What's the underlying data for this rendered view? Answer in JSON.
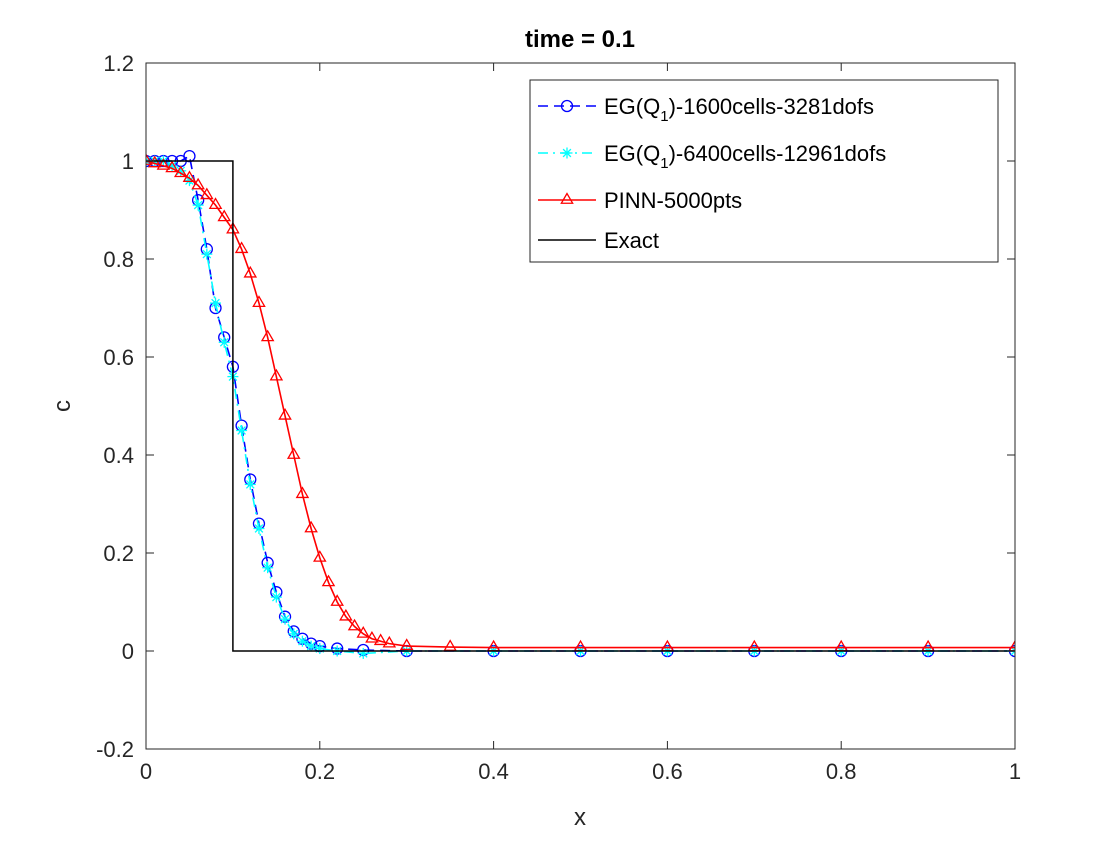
{
  "chart_data": {
    "type": "line",
    "title": "time = 0.1",
    "xlabel": "x",
    "ylabel": "c",
    "xlim": [
      0,
      1
    ],
    "ylim": [
      -0.2,
      1.2
    ],
    "xticks": [
      0,
      0.2,
      0.4,
      0.6,
      0.8,
      1
    ],
    "xtick_labels": [
      "0",
      "0.2",
      "0.4",
      "0.6",
      "0.8",
      "1"
    ],
    "yticks": [
      -0.2,
      0,
      0.2,
      0.4,
      0.6,
      0.8,
      1,
      1.2
    ],
    "ytick_labels": [
      "-0.2",
      "0",
      "0.2",
      "0.4",
      "0.6",
      "0.8",
      "1",
      "1.2"
    ],
    "grid": false,
    "legend_position": "top-right",
    "series": [
      {
        "name": "EG(Q1)-1600cells-3281dofs",
        "legend_prefix": "EG(Q",
        "legend_sub": "1",
        "legend_suffix": ")-1600cells-3281dofs",
        "color": "#0000ff",
        "line_style": "dashed",
        "marker": "circle",
        "x": [
          0,
          0.01,
          0.02,
          0.03,
          0.04,
          0.05,
          0.06,
          0.07,
          0.08,
          0.09,
          0.1,
          0.11,
          0.12,
          0.13,
          0.14,
          0.15,
          0.16,
          0.17,
          0.18,
          0.19,
          0.2,
          0.22,
          0.25,
          0.3,
          0.4,
          0.5,
          0.6,
          0.7,
          0.8,
          0.9,
          1.0
        ],
        "y": [
          1.0,
          1.0,
          1.0,
          1.0,
          1.0,
          1.01,
          0.92,
          0.82,
          0.7,
          0.64,
          0.58,
          0.46,
          0.35,
          0.26,
          0.18,
          0.12,
          0.07,
          0.04,
          0.025,
          0.015,
          0.01,
          0.005,
          0.002,
          0.0,
          0.0,
          0.0,
          0.0,
          0.0,
          0.0,
          0.0,
          0.0
        ]
      },
      {
        "name": "EG(Q1)-6400cells-12961dofs",
        "legend_prefix": "EG(Q",
        "legend_sub": "1",
        "legend_suffix": ")-6400cells-12961dofs",
        "color": "#00ffff",
        "line_style": "dashdot",
        "marker": "asterisk",
        "x": [
          0,
          0.01,
          0.02,
          0.03,
          0.04,
          0.05,
          0.06,
          0.07,
          0.08,
          0.09,
          0.1,
          0.11,
          0.12,
          0.13,
          0.14,
          0.15,
          0.16,
          0.17,
          0.18,
          0.19,
          0.2,
          0.22,
          0.25,
          0.3,
          0.4,
          0.5,
          0.6,
          0.7,
          0.8,
          0.9,
          1.0
        ],
        "y": [
          1.0,
          1.0,
          1.0,
          0.99,
          0.98,
          0.96,
          0.91,
          0.81,
          0.71,
          0.63,
          0.56,
          0.45,
          0.34,
          0.25,
          0.17,
          0.11,
          0.065,
          0.035,
          0.02,
          0.01,
          0.005,
          0.0,
          -0.005,
          0.0,
          0.0,
          0.0,
          0.0,
          0.0,
          0.0,
          0.0,
          0.0
        ]
      },
      {
        "name": "PINN-5000pts",
        "legend_prefix": "PINN-5000pts",
        "legend_sub": "",
        "legend_suffix": "",
        "color": "#ff0000",
        "line_style": "solid",
        "marker": "triangle",
        "x": [
          0,
          0.01,
          0.02,
          0.03,
          0.04,
          0.05,
          0.06,
          0.07,
          0.08,
          0.09,
          0.1,
          0.11,
          0.12,
          0.13,
          0.14,
          0.15,
          0.16,
          0.17,
          0.18,
          0.19,
          0.2,
          0.21,
          0.22,
          0.23,
          0.24,
          0.25,
          0.26,
          0.27,
          0.28,
          0.3,
          0.35,
          0.4,
          0.5,
          0.6,
          0.7,
          0.8,
          0.9,
          1.0
        ],
        "y": [
          1.0,
          0.995,
          0.99,
          0.985,
          0.975,
          0.965,
          0.95,
          0.93,
          0.91,
          0.885,
          0.86,
          0.82,
          0.77,
          0.71,
          0.64,
          0.56,
          0.48,
          0.4,
          0.32,
          0.25,
          0.19,
          0.14,
          0.1,
          0.07,
          0.05,
          0.035,
          0.025,
          0.02,
          0.015,
          0.01,
          0.008,
          0.007,
          0.007,
          0.007,
          0.007,
          0.007,
          0.007,
          0.007
        ]
      },
      {
        "name": "Exact",
        "legend_prefix": "Exact",
        "legend_sub": "",
        "legend_suffix": "",
        "color": "#000000",
        "line_style": "solid",
        "marker": "none",
        "x": [
          0,
          0.1,
          0.1,
          1.0
        ],
        "y": [
          1.0,
          1.0,
          0.0,
          0.0
        ]
      }
    ]
  }
}
